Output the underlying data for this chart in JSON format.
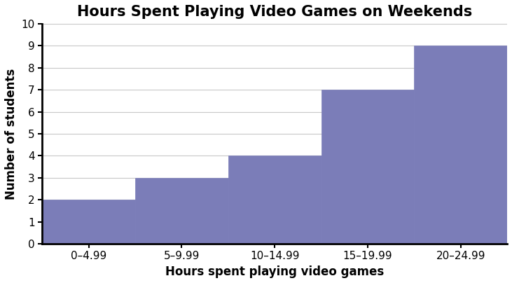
{
  "title": "Hours Spent Playing Video Games on Weekends",
  "xlabel": "Hours spent playing video games",
  "ylabel": "Number of students",
  "bar_edges": [
    0,
    5,
    10,
    15,
    20,
    25
  ],
  "bar_heights": [
    2,
    3,
    4,
    7,
    9
  ],
  "bar_color": "#7b7db8",
  "bar_edgecolor": "#7b7db8",
  "ylim": [
    0,
    10
  ],
  "yticks": [
    0,
    1,
    2,
    3,
    4,
    5,
    6,
    7,
    8,
    9,
    10
  ],
  "xtick_labels": [
    "0–4.99",
    "5–9.99",
    "10–14.99",
    "15–19.99",
    "20–24.99"
  ],
  "xtick_positions": [
    2.5,
    7.5,
    12.5,
    17.5,
    22.5
  ],
  "title_fontsize": 15,
  "label_fontsize": 12,
  "tick_fontsize": 11,
  "grid_color": "#c8c8c8",
  "background_color": "#ffffff",
  "title_fontweight": "bold",
  "label_fontweight": "bold",
  "spine_linewidth": 2.0,
  "figsize": [
    7.31,
    4.04
  ],
  "dpi": 100
}
